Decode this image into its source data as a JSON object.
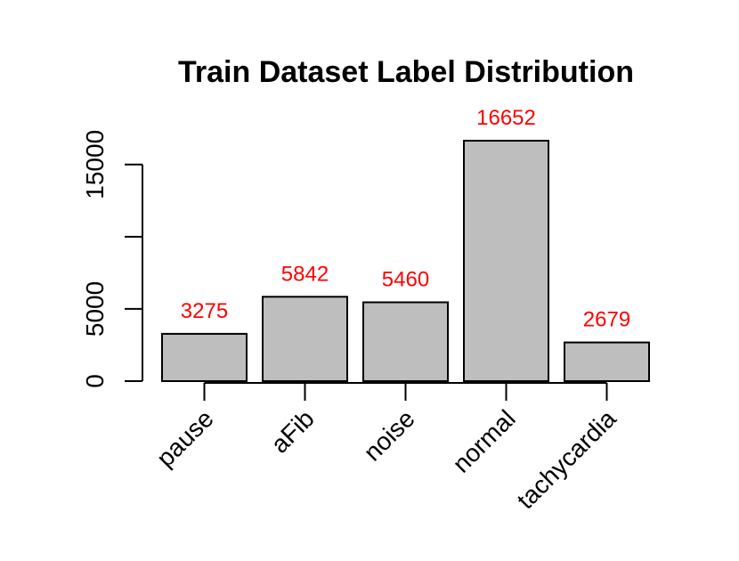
{
  "chart_data": {
    "type": "bar",
    "title": "Train Dataset Label Distribution",
    "xlabel": "",
    "ylabel": "",
    "categories": [
      "pause",
      "aFib",
      "noise",
      "normal",
      "tachycardia"
    ],
    "values": [
      3275,
      5842,
      5460,
      16652,
      2679
    ],
    "value_labels": [
      "3275",
      "5842",
      "5460",
      "16652",
      "2679"
    ],
    "ylim": [
      0,
      16652
    ],
    "y_ticks": [
      0,
      5000,
      10000,
      15000
    ],
    "y_tick_labels": [
      "0",
      "5000",
      "",
      "15000"
    ],
    "grid": false,
    "legend": "none",
    "bar_color": "#bebebe",
    "bar_edge_color": "#000000",
    "value_label_color": "#ff0000"
  }
}
